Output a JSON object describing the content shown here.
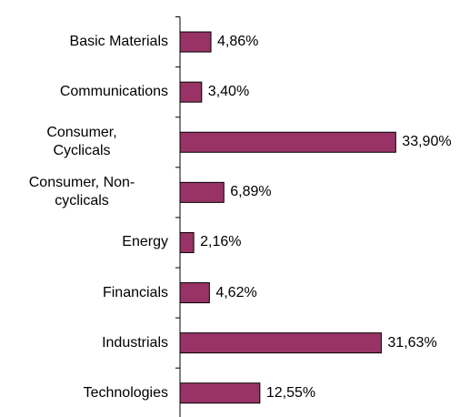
{
  "chart_data": {
    "type": "bar",
    "orientation": "horizontal",
    "categories": [
      "Basic Materials",
      "Communications",
      "Consumer,\nCyclicals",
      "Consumer, Non-\ncyclicals",
      "Energy",
      "Financials",
      "Industrials",
      "Technologies"
    ],
    "values": [
      4.86,
      3.4,
      33.9,
      6.89,
      2.16,
      4.62,
      31.63,
      12.55
    ],
    "value_labels": [
      "4,86%",
      "3,40%",
      "33,90%",
      "6,89%",
      "2,16%",
      "4,62%",
      "31,63%",
      "12,55%"
    ],
    "color": "#993366"
  }
}
